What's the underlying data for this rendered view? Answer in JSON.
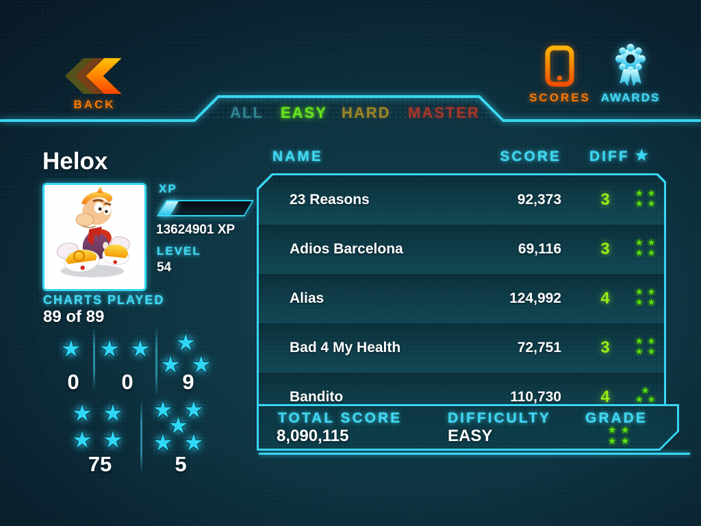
{
  "header": {
    "back": {
      "label": "BACK"
    },
    "tabs": [
      {
        "id": "all",
        "label": "ALL",
        "state": "inactive",
        "color": "#2e8292"
      },
      {
        "id": "easy",
        "label": "EASY",
        "state": "active",
        "color": "#68e41c"
      },
      {
        "id": "hard",
        "label": "HARD",
        "state": "inactive",
        "color": "#9d8526"
      },
      {
        "id": "master",
        "label": "MASTER",
        "state": "inactive",
        "color": "#a63428"
      }
    ],
    "scores": {
      "label": "SCORES"
    },
    "awards": {
      "label": "AWARDS"
    }
  },
  "player": {
    "name": "Helox",
    "xp_label": "XP",
    "xp_value": "13624901 XP",
    "xp_progress_percent": 14,
    "level_label": "LEVEL",
    "level": "54",
    "charts_played_label": "CHARTS PLAYED",
    "charts_played": "89 of 89",
    "star_tallies": [
      {
        "stars": 1,
        "count": "0"
      },
      {
        "stars": 2,
        "count": "0"
      },
      {
        "stars": 3,
        "count": "9"
      },
      {
        "stars": 4,
        "count": "75"
      },
      {
        "stars": 5,
        "count": "5"
      }
    ]
  },
  "songs": {
    "headers": {
      "name": "NAME",
      "score": "SCORE",
      "diff": "DIFF"
    },
    "rows": [
      {
        "name": "23 Reasons",
        "score": "92,373",
        "diff": "3",
        "stars": 4
      },
      {
        "name": "Adios Barcelona",
        "score": "69,116",
        "diff": "3",
        "stars": 4
      },
      {
        "name": "Alias",
        "score": "124,992",
        "diff": "4",
        "stars": 4
      },
      {
        "name": "Bad 4 My Health",
        "score": "72,751",
        "diff": "3",
        "stars": 4
      },
      {
        "name": "Bandito",
        "score": "110,730",
        "diff": "4",
        "stars": 3
      }
    ]
  },
  "summary": {
    "total_score_label": "TOTAL SCORE",
    "total_score": "8,090,115",
    "difficulty_label": "DIFFICULTY",
    "difficulty": "EASY",
    "grade_label": "GRADE",
    "grade_stars": 4
  },
  "colors": {
    "accent_cyan": "#3ed8f4",
    "accent_green": "#6ae41c",
    "accent_orange": "#ff6a00",
    "star_cyan": "#2fd7f7",
    "star_green": "#5ce414",
    "bg_dark": "#0a1b26",
    "panel_teal": "#0e3b48"
  }
}
